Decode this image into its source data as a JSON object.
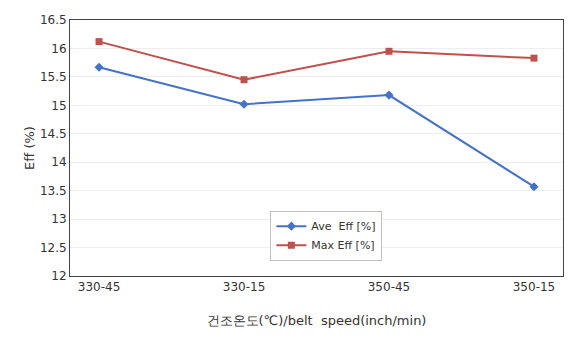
{
  "chart_data": {
    "type": "line",
    "categories": [
      "330-45",
      "330-15",
      "350-45",
      "350-15"
    ],
    "series": [
      {
        "name": "Ave  Eff [%]",
        "color": "#4472C4",
        "marker": "diamond",
        "values": [
          15.67,
          15.02,
          15.18,
          13.57
        ]
      },
      {
        "name": "Max Eff [%]",
        "color": "#C0504D",
        "marker": "square",
        "values": [
          16.12,
          15.45,
          15.95,
          15.83
        ]
      }
    ],
    "xlabel": "건조온도(℃)/belt  speed(inch/min)",
    "ylabel": "Eff (%)",
    "ylim": [
      12,
      16.5
    ],
    "yticks": [
      12,
      12.5,
      13,
      13.5,
      14,
      14.5,
      15,
      15.5,
      16,
      16.5
    ],
    "grid": true,
    "legend": "lower center"
  }
}
